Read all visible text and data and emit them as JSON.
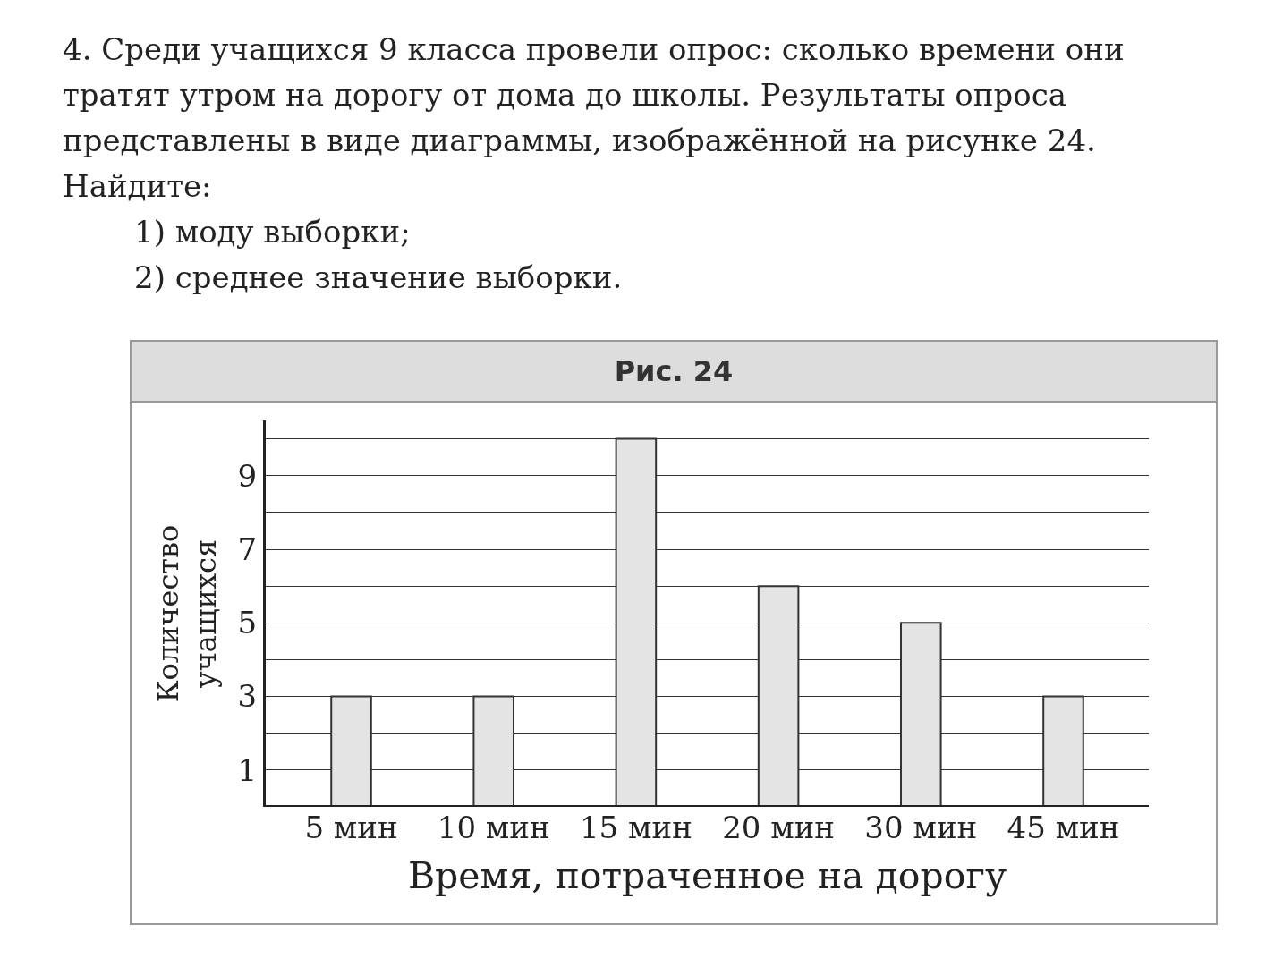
{
  "chart_data": {
    "type": "bar",
    "title": "Рис. 24",
    "annotations": [
      "4. Среди учащихся 9 класса провели опрос: сколько времени они тратят утром на дорогу от дома до школы. Результаты опроса представлены в виде диаграммы, изображённой на рисунке 24. Найдите:",
      "1) моду выборки;",
      "2) среднее значение выборки."
    ],
    "xlabel": "Время, потраченное на дорогу",
    "ylabel": "Количество учащихся",
    "categories": [
      "5 мин",
      "10 мин",
      "15 мин",
      "20 мин",
      "30 мин",
      "45 мин"
    ],
    "values": [
      3,
      3,
      10,
      6,
      5,
      3
    ],
    "color": "#e4e4e4",
    "ylim": [
      0,
      10.5
    ],
    "yticks": [
      {
        "value": 0,
        "label": null
      },
      1,
      {
        "value": 2,
        "label": null
      },
      3,
      {
        "value": 4,
        "label": null
      },
      5,
      {
        "value": 6,
        "label": null
      },
      7,
      {
        "value": 8,
        "label": null
      },
      9,
      {
        "value": 10,
        "label": null
      }
    ],
    "grid": "y",
    "legend": false
  }
}
